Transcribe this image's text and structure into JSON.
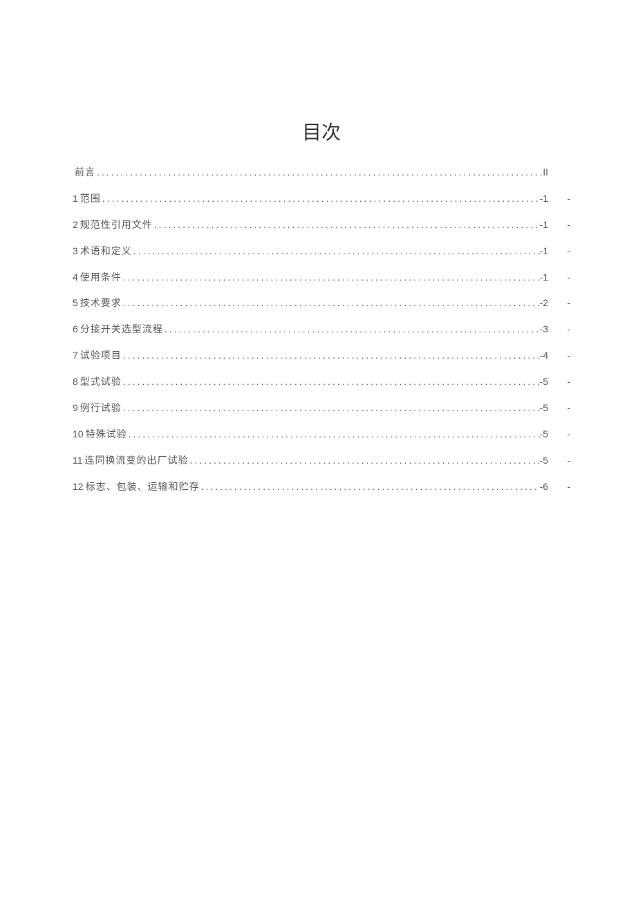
{
  "title": "目次",
  "entries": [
    {
      "number": "",
      "label": "前言",
      "page": "II",
      "dash": ""
    },
    {
      "number": "1",
      "label": "范围",
      "page": "-1",
      "dash": "-"
    },
    {
      "number": "2",
      "label": "规范性引用文件",
      "page": "-1",
      "dash": "-"
    },
    {
      "number": "3",
      "label": "术语和定义",
      "page": "-1",
      "dash": "-"
    },
    {
      "number": "4",
      "label": "使用条件",
      "page": "-1",
      "dash": "-"
    },
    {
      "number": "5",
      "label": "技术要求",
      "page": "-2",
      "dash": "-"
    },
    {
      "number": "6",
      "label": "分接开关选型流程",
      "page": "-3",
      "dash": "-"
    },
    {
      "number": "7",
      "label": "试验项目",
      "page": "-4",
      "dash": "-"
    },
    {
      "number": "8",
      "label": "型式试验",
      "page": "-5",
      "dash": "-"
    },
    {
      "number": "9",
      "label": "例行试验",
      "page": "-5",
      "dash": "-"
    },
    {
      "number": "10",
      "label": "特殊试验",
      "page": "-5",
      "dash": "-"
    },
    {
      "number": "11",
      "label": "连同换流变的出厂试验",
      "page": "-5",
      "dash": "-"
    },
    {
      "number": "12",
      "label": "标志、包装、运输和贮存",
      "page": "-6",
      "dash": "-"
    }
  ]
}
